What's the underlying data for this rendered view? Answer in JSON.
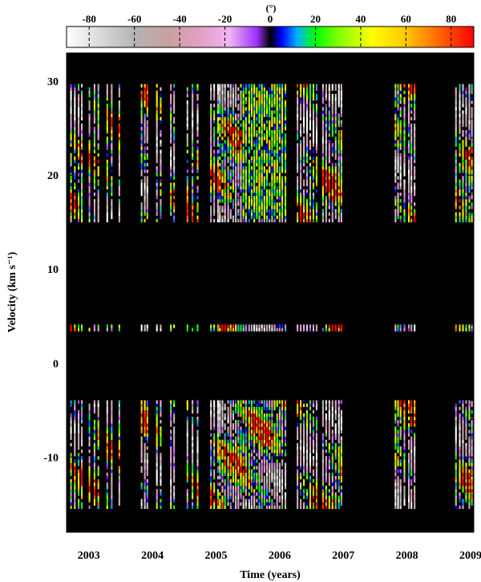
{
  "chart_data": {
    "type": "heatmap",
    "title": "",
    "xlabel": "Time (years)",
    "ylabel": "Velocity (km s⁻¹)",
    "xlim": [
      2002.65,
      2009.05
    ],
    "ylim": [
      -18,
      33
    ],
    "x_ticks": [
      "2003",
      "2004",
      "2005",
      "2006",
      "2007",
      "2008",
      "2009"
    ],
    "y_ticks": [
      "-10",
      "0",
      "10",
      "20",
      "30"
    ],
    "colorbar": {
      "unit": "(°)",
      "range": [
        -90,
        90
      ],
      "ticks": [
        "-80",
        "-60",
        "-40",
        "-20",
        "0",
        "20",
        "40",
        "60",
        "80"
      ],
      "stops": [
        {
          "v": -90,
          "color": "#ffffff"
        },
        {
          "v": -60,
          "color": "#b4b4b4"
        },
        {
          "v": -45,
          "color": "#c8a0a0"
        },
        {
          "v": -30,
          "color": "#e6a0c8"
        },
        {
          "v": -18,
          "color": "#f0b4f0"
        },
        {
          "v": -6,
          "color": "#a030ff"
        },
        {
          "v": 0,
          "color": "#000000"
        },
        {
          "v": 5,
          "color": "#0000ff"
        },
        {
          "v": 12,
          "color": "#00b4ff"
        },
        {
          "v": 20,
          "color": "#00ff00"
        },
        {
          "v": 30,
          "color": "#7fff00"
        },
        {
          "v": 45,
          "color": "#ffff00"
        },
        {
          "v": 60,
          "color": "#ffc800"
        },
        {
          "v": 75,
          "color": "#ff6400"
        },
        {
          "v": 90,
          "color": "#ff0000"
        }
      ]
    },
    "background_color": "#000000",
    "velocity_bands": [
      {
        "name": "upper",
        "vmin": 15,
        "vmax": 29.5
      },
      {
        "name": "middle",
        "vmin": 3.4,
        "vmax": 3.8
      },
      {
        "name": "lower",
        "vmin": -15.5,
        "vmax": -4.0
      }
    ],
    "observation_epochs": [
      2002.72,
      2002.78,
      2002.84,
      2002.89,
      2003.01,
      2003.09,
      2003.15,
      2003.29,
      2003.36,
      2003.48,
      2003.83,
      2003.88,
      2003.92,
      2004.07,
      2004.13,
      2004.29,
      2004.34,
      2004.55,
      2004.63,
      2004.71,
      2004.92,
      2004.97,
      2005.03,
      2005.06,
      2005.1,
      2005.14,
      2005.19,
      2005.23,
      2005.27,
      2005.31,
      2005.35,
      2005.39,
      2005.43,
      2005.47,
      2005.52,
      2005.56,
      2005.6,
      2005.64,
      2005.68,
      2005.72,
      2005.76,
      2005.8,
      2005.84,
      2005.88,
      2005.92,
      2005.96,
      2006.0,
      2006.04,
      2006.09,
      2006.28,
      2006.33,
      2006.38,
      2006.43,
      2006.48,
      2006.53,
      2006.58,
      2006.68,
      2006.73,
      2006.78,
      2006.83,
      2006.88,
      2006.93,
      2006.97,
      2007.82,
      2007.86,
      2007.9,
      2007.96,
      2008.03,
      2008.07,
      2008.12,
      2008.77,
      2008.83,
      2008.88,
      2008.93,
      2008.98,
      2009.02
    ]
  }
}
